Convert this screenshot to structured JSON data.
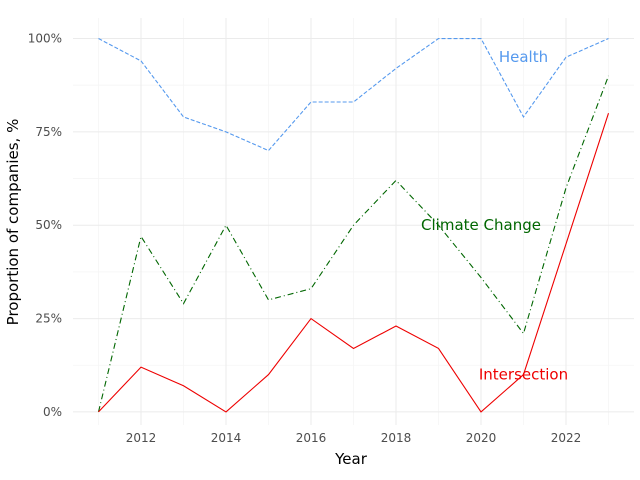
{
  "chart_data": {
    "type": "line",
    "title": "",
    "xlabel": "Year",
    "ylabel": "Proportion of companies, %",
    "xlim": [
      2010.4,
      2023.6
    ],
    "ylim": [
      -0.035,
      1.055
    ],
    "x_ticks": [
      2012,
      2014,
      2016,
      2018,
      2020,
      2022
    ],
    "x_tick_labels": [
      "2012",
      "2014",
      "2016",
      "2018",
      "2020",
      "2022"
    ],
    "y_ticks": [
      0,
      0.25,
      0.5,
      0.75,
      1.0
    ],
    "y_tick_labels": [
      "0%",
      "25%",
      "50%",
      "75%",
      "100%"
    ],
    "grid": true,
    "legend": "none (direct labels on lines)",
    "x": [
      2011,
      2012,
      2013,
      2014,
      2015,
      2016,
      2017,
      2018,
      2019,
      2020,
      2021,
      2022,
      2023
    ],
    "series": [
      {
        "name": "Health",
        "color": "#5599ee",
        "line_style": "dashed",
        "values": [
          1.0,
          0.94,
          0.79,
          0.75,
          0.7,
          0.83,
          0.83,
          0.92,
          1.0,
          1.0,
          0.79,
          0.95,
          1.0
        ],
        "label_at": [
          2021.0,
          0.95
        ]
      },
      {
        "name": "Climate Change",
        "color": "#006600",
        "line_style": "dashdot",
        "values": [
          0.0,
          0.47,
          0.29,
          0.5,
          0.3,
          0.33,
          0.5,
          0.62,
          0.5,
          0.36,
          0.21,
          0.6,
          0.9
        ],
        "label_at": [
          2020.0,
          0.5
        ]
      },
      {
        "name": "Intersection",
        "color": "#ee0000",
        "line_style": "solid",
        "values": [
          0.0,
          0.12,
          0.07,
          0.0,
          0.1,
          0.25,
          0.17,
          0.23,
          0.17,
          0.0,
          0.1,
          0.45,
          0.8
        ],
        "label_at": [
          2021.0,
          0.1
        ]
      }
    ]
  }
}
